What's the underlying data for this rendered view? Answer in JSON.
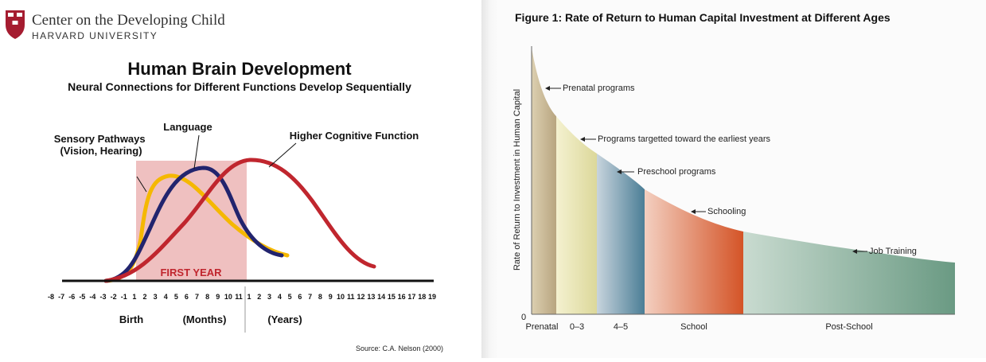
{
  "header": {
    "org_name": "Center on the Developing Child",
    "university": "HARVARD UNIVERSITY",
    "shield_text": "VE RI TAS"
  },
  "left_chart": {
    "title": "Human Brain Development",
    "subtitle": "Neural Connections for Different Functions Develop Sequentially",
    "band_label": "FIRST YEAR",
    "axis_months_ticks": [
      "-8",
      "-7",
      "-6",
      "-5",
      "-4",
      "-3",
      "-2",
      "-1",
      "1",
      "2",
      "3",
      "4",
      "5",
      "6",
      "7",
      "8",
      "9",
      "10",
      "11"
    ],
    "axis_years_ticks": [
      "1",
      "2",
      "3",
      "4",
      "5",
      "6",
      "7",
      "8",
      "9",
      "10",
      "11",
      "12",
      "13",
      "14",
      "15",
      "16",
      "17",
      "18",
      "19"
    ],
    "axis_captions": {
      "birth": "Birth",
      "months": "(Months)",
      "years": "(Years)"
    },
    "source": "Source: C.A. Nelson (2000)",
    "colors": {
      "sensory": "#f5b800",
      "language": "#22246e",
      "higher": "#c0262e",
      "band": "#efc0c0",
      "band_label": "#c0262e"
    },
    "chart_data": {
      "type": "line",
      "series": [
        {
          "name": "Sensory Pathways\n(Vision, Hearing)",
          "peak_x": "4 months"
        },
        {
          "name": "Language",
          "peak_x": "8 months"
        },
        {
          "name": "Higher Cognitive Function",
          "peak_x": "1 year"
        }
      ]
    }
  },
  "right_chart": {
    "title": "Figure 1: Rate of Return to Human Capital Investment at Different Ages",
    "ylabel": "Rate of Return to Investment in Human Capital",
    "y_zero": "0",
    "categories": [
      "Prenatal",
      "0–3",
      "4–5",
      "School",
      "Post-School"
    ],
    "annotations": [
      "Prenatal programs",
      "Programs targetted toward the earliest years",
      "Preschool programs",
      "Schooling",
      "Job Training"
    ],
    "chart_data": {
      "type": "area",
      "categories": [
        "Prenatal",
        "0–3",
        "4–5",
        "School",
        "Post-School"
      ],
      "colors": [
        "#c4b28f",
        "#e4e0a4",
        "#5d8aa0",
        "#d85c32",
        "#75a08b"
      ]
    }
  }
}
